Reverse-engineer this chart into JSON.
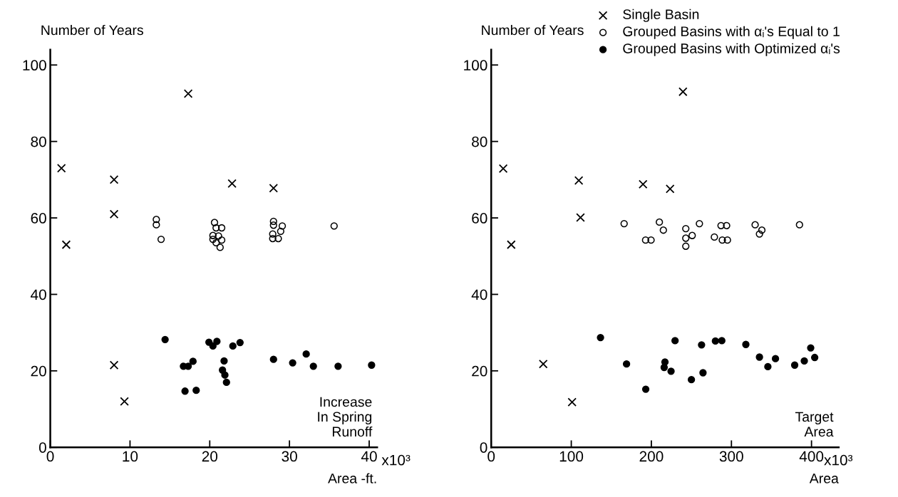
{
  "chart_data": [
    {
      "type": "scatter",
      "ylabel": "Number of Years",
      "xlabel": "Area -ft.",
      "annotations": [
        "Increase\nIn Spring\nRunoff",
        "x10³"
      ],
      "xlim": [
        0,
        41
      ],
      "ylim": [
        0,
        104
      ],
      "xticks": [
        0,
        10,
        20,
        30,
        40
      ],
      "yticks": [
        0,
        20,
        40,
        60,
        80,
        100
      ],
      "grid": false,
      "legend": false,
      "series": [
        {
          "marker": "cross",
          "color": "#000000",
          "x": [
            1.4,
            2,
            8,
            8,
            17.3,
            22.8,
            28,
            8,
            9.3
          ],
          "values": [
            73,
            53,
            70,
            61,
            92.5,
            69,
            67.8,
            21.5,
            12
          ]
        },
        {
          "marker": "circle_open",
          "color": "#000000",
          "x": [
            13.3,
            13.3,
            13.9,
            20.6,
            20.8,
            21.5,
            20.4,
            21.1,
            20.4,
            20.8,
            21.5,
            21.3,
            28,
            28,
            29.1,
            28.9,
            27.9,
            27.9,
            28.6,
            35.6
          ],
          "values": [
            59.6,
            58.2,
            54.4,
            58.8,
            57.4,
            57.4,
            55.4,
            55.3,
            54.4,
            53.5,
            54.2,
            52.3,
            59.1,
            58.1,
            57.9,
            56.5,
            55.8,
            54.6,
            54.6,
            57.9
          ]
        },
        {
          "marker": "circle",
          "color": "#000000",
          "x": [
            14.4,
            16.7,
            17.3,
            17.9,
            16.9,
            18.3,
            19.9,
            20.4,
            20.9,
            22.9,
            23.8,
            21.8,
            21.6,
            21.9,
            22.1,
            28,
            30.4,
            32.1,
            33,
            36.1,
            40.3
          ],
          "values": [
            28.2,
            21.2,
            21.2,
            22.5,
            14.7,
            14.9,
            27.5,
            26.5,
            27.7,
            26.5,
            27.4,
            22.6,
            20.2,
            18.9,
            17,
            23,
            22.1,
            24.4,
            21.2,
            21.2,
            21.5
          ]
        }
      ]
    },
    {
      "type": "scatter",
      "ylabel": "Number of Years",
      "xlabel": "Area",
      "annotations": [
        "Target\nArea",
        "x10³"
      ],
      "xlim": [
        0,
        434
      ],
      "ylim": [
        0,
        104
      ],
      "xticks": [
        0,
        100,
        200,
        300,
        400
      ],
      "yticks": [
        0,
        20,
        40,
        60,
        80,
        100
      ],
      "grid": false,
      "legend": "top right",
      "series": [
        {
          "name": "Single Basin",
          "marker": "cross",
          "color": "#000000",
          "x": [
            15,
            25,
            109.4,
            111.5,
            189.6,
            223.4,
            239.5,
            65,
            101
          ],
          "values": [
            72.9,
            53,
            69.8,
            60.1,
            68.8,
            67.6,
            93,
            21.8,
            11.8
          ]
        },
        {
          "name": "Grouped Basins with αᵢ's Equal to 1",
          "marker": "circle_open",
          "color": "#000000",
          "x": [
            166,
            192.8,
            199.6,
            210,
            215,
            243,
            243,
            243,
            251,
            260,
            278.7,
            287,
            294,
            288.6,
            295,
            329.6,
            338,
            335,
            385
          ],
          "values": [
            58.5,
            54.2,
            54.2,
            58.9,
            56.8,
            57.2,
            54.7,
            52.6,
            55.4,
            58.5,
            55,
            58,
            58,
            54.2,
            54.2,
            58.2,
            56.8,
            55.8,
            58.2
          ]
        },
        {
          "name": "Grouped Basins with Optimized αᵢ's",
          "marker": "circle",
          "color": "#000000",
          "x": [
            136.5,
            169,
            193,
            217,
            216,
            224.6,
            229.6,
            250,
            262.7,
            264.5,
            280,
            288,
            318,
            335,
            345.5,
            355,
            379,
            391,
            399,
            404
          ],
          "values": [
            28.7,
            21.8,
            15.2,
            22.3,
            20.9,
            19.9,
            27.9,
            17.7,
            26.8,
            19.5,
            27.8,
            27.9,
            26.9,
            23.6,
            21.1,
            23.2,
            21.5,
            22.6,
            26,
            23.5
          ]
        }
      ]
    }
  ]
}
